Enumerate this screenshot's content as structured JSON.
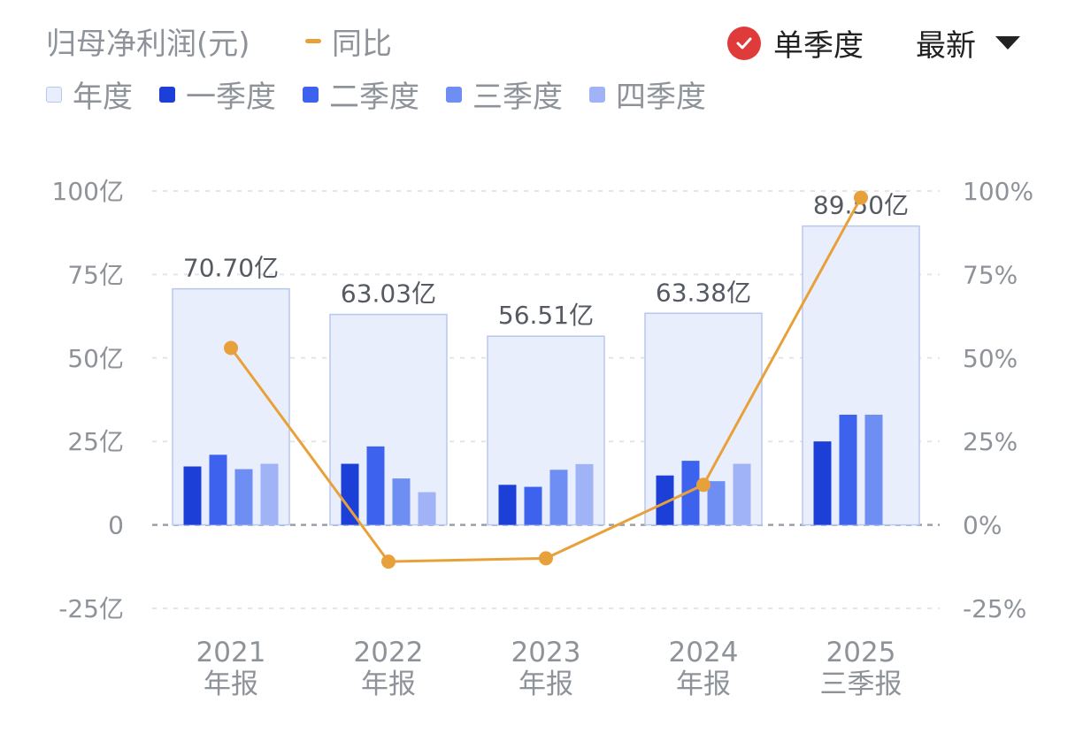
{
  "header": {
    "title": "归母净利润(元)",
    "yoy_legend_label": "同比",
    "single_quarter_label": "单季度",
    "latest_label": "最新"
  },
  "colors": {
    "annual_fill": "#e8eefc",
    "annual_stroke": "#b7c7ee",
    "q1": "#1c3fd8",
    "q2": "#3d63ee",
    "q3": "#6f8ef3",
    "q4": "#9fb3f6",
    "yoy_line": "#e8a13a",
    "check": "#e03b3b"
  },
  "chart_data": {
    "type": "bar",
    "categories": [
      [
        "2021",
        "年报"
      ],
      [
        "2022",
        "年报"
      ],
      [
        "2023",
        "年报"
      ],
      [
        "2024",
        "年报"
      ],
      [
        "2025",
        "三季报"
      ]
    ],
    "series": [
      {
        "name": "年度",
        "values": [
          70.7,
          63.03,
          56.51,
          63.38,
          89.5
        ],
        "data_labels": [
          "70.70亿",
          "63.03亿",
          "56.51亿",
          "63.38亿",
          "89.50亿"
        ]
      },
      {
        "name": "一季度",
        "values": [
          17.5,
          18.3,
          12.0,
          14.8,
          25.0
        ]
      },
      {
        "name": "二季度",
        "values": [
          21.0,
          23.5,
          11.4,
          19.2,
          33.0
        ]
      },
      {
        "name": "三季度",
        "values": [
          16.7,
          13.9,
          16.5,
          13.1,
          33.0
        ]
      },
      {
        "name": "四季度",
        "values": [
          18.3,
          9.8,
          18.2,
          18.3,
          null
        ]
      }
    ],
    "yoy": {
      "name": "同比",
      "values": [
        53,
        -11,
        -10,
        12,
        98
      ]
    },
    "ylim": [
      -25,
      100
    ],
    "yticks": [
      100,
      75,
      50,
      25,
      0,
      -25
    ],
    "ytick_labels": [
      "100亿",
      "75亿",
      "50亿",
      "25亿",
      "0",
      "-25亿"
    ],
    "y2lim": [
      -25,
      100
    ],
    "y2ticks": [
      100,
      75,
      50,
      25,
      0,
      -25
    ],
    "y2tick_labels": [
      "100%",
      "75%",
      "50%",
      "25%",
      "0%",
      "-25%"
    ],
    "grid": true,
    "legend_position": "top-left"
  }
}
